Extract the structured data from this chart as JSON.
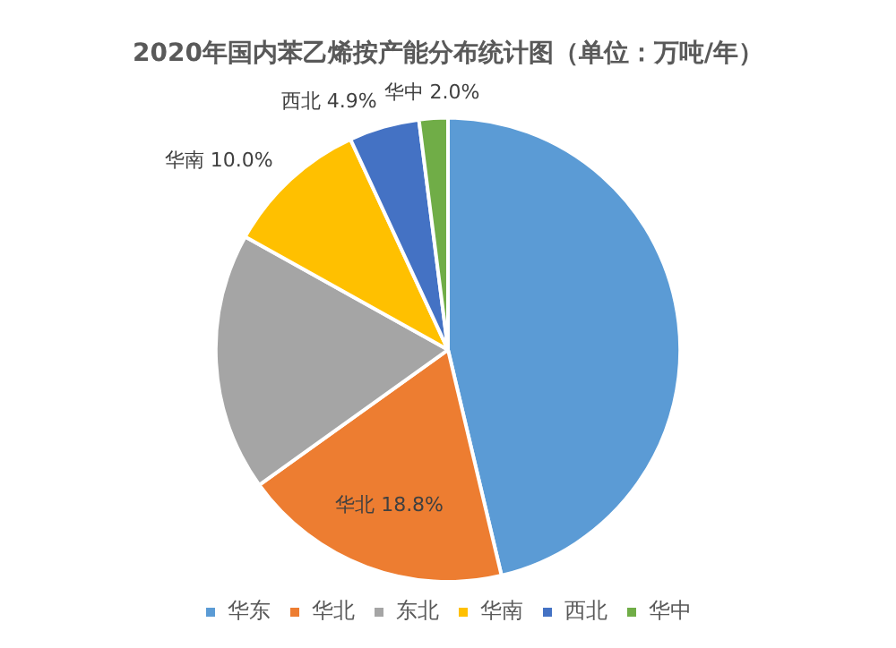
{
  "chart_data": {
    "type": "pie",
    "title": "2020年国内苯乙烯按产能分布统计图（单位：万吨/年）",
    "categories": [
      "华东",
      "华北",
      "东北",
      "华南",
      "西北",
      "华中"
    ],
    "values": [
      46.3,
      18.8,
      18.0,
      10.0,
      4.9,
      2.0
    ],
    "colors": [
      "#5b9bd5",
      "#ed7d31",
      "#a5a5a5",
      "#ffc000",
      "#4472c4",
      "#70ad47"
    ],
    "value_labels": [
      null,
      "18.8%",
      null,
      "10.0%",
      "4.9%",
      "2.0%"
    ],
    "legend": "bottom"
  }
}
